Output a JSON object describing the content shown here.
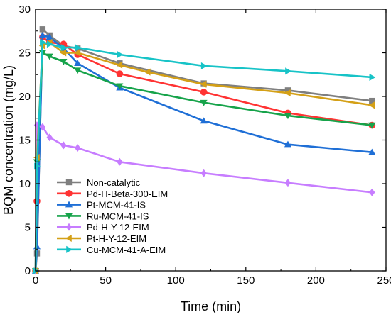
{
  "chart_data": {
    "type": "line",
    "xlabel": "Time (min)",
    "ylabel": "BQM concentration (mg/L)",
    "xlim": [
      0,
      250
    ],
    "ylim": [
      0,
      30
    ],
    "xticks": [
      0,
      50,
      100,
      150,
      200,
      250
    ],
    "yticks": [
      0,
      5,
      10,
      15,
      20,
      25,
      30
    ],
    "grid": false,
    "legend_position": "lower-left",
    "series": [
      {
        "name": "Non-catalytic",
        "color": "#7f7f7f",
        "marker": "square",
        "x": [
          0,
          1,
          5,
          10,
          20,
          30,
          60,
          120,
          180,
          240
        ],
        "y": [
          0,
          2,
          27.7,
          27.0,
          25.8,
          25.5,
          23.8,
          21.5,
          20.7,
          19.5
        ]
      },
      {
        "name": "Pd-H-Beta-300-EIM",
        "color": "#ff3333",
        "marker": "circle",
        "x": [
          0,
          1,
          5,
          10,
          20,
          30,
          60,
          120,
          180,
          240
        ],
        "y": [
          0,
          8,
          26.8,
          26.2,
          26.0,
          24.8,
          22.6,
          20.5,
          18.1,
          16.7
        ]
      },
      {
        "name": "Pt-MCM-41-IS",
        "color": "#1f6fd6",
        "marker": "triangle-up",
        "x": [
          0,
          1,
          5,
          10,
          20,
          30,
          60,
          120,
          180,
          240
        ],
        "y": [
          0,
          2.8,
          27.0,
          26.8,
          25.5,
          23.8,
          21.0,
          17.2,
          14.5,
          13.6
        ]
      },
      {
        "name": "Ru-MCM-41-IS",
        "color": "#16a34a",
        "marker": "triangle-down",
        "x": [
          0,
          1,
          5,
          10,
          20,
          30,
          60,
          120,
          180,
          240
        ],
        "y": [
          0,
          12.5,
          25.0,
          24.6,
          24.0,
          23.0,
          21.2,
          19.3,
          17.8,
          16.7
        ]
      },
      {
        "name": "Pd-H-Y-12-EIM",
        "color": "#c77dff",
        "marker": "diamond",
        "x": [
          0,
          1,
          5,
          10,
          20,
          30,
          60,
          120,
          180,
          240
        ],
        "y": [
          0,
          16.7,
          16.5,
          15.3,
          14.4,
          14.1,
          12.5,
          11.2,
          10.1,
          9.0
        ]
      },
      {
        "name": "Pt-H-Y-12-EIM",
        "color": "#d4a017",
        "marker": "triangle-left",
        "x": [
          0,
          1,
          5,
          10,
          20,
          30,
          60,
          80,
          120,
          180,
          240
        ],
        "y": [
          0,
          13,
          25.8,
          26.2,
          25.0,
          25.0,
          23.6,
          22.8,
          21.4,
          20.4,
          19.0
        ]
      },
      {
        "name": "Cu-MCM-41-A-EIM",
        "color": "#17c3c7",
        "marker": "triangle-right",
        "x": [
          0,
          1,
          5,
          10,
          20,
          30,
          60,
          120,
          180,
          240
        ],
        "y": [
          0,
          12,
          26.2,
          26.0,
          25.6,
          25.6,
          24.8,
          23.5,
          22.9,
          22.2
        ]
      }
    ]
  }
}
